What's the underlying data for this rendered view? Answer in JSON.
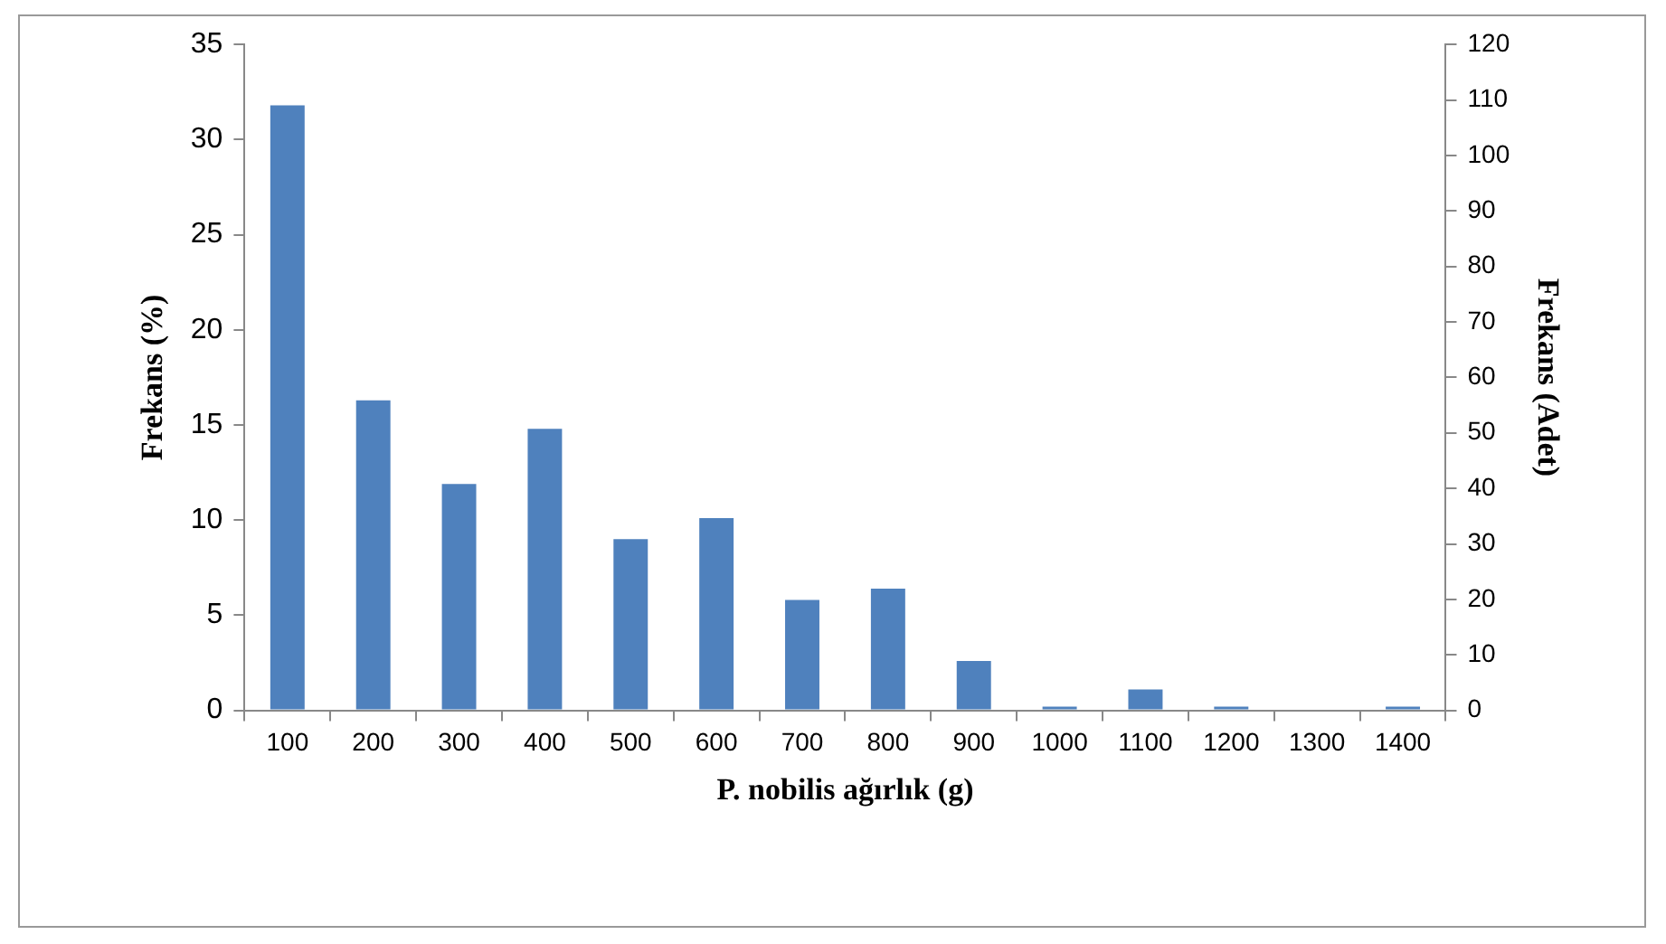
{
  "chart_data": {
    "type": "bar",
    "categories": [
      "100",
      "200",
      "300",
      "400",
      "500",
      "600",
      "700",
      "800",
      "900",
      "1000",
      "1100",
      "1200",
      "1300",
      "1400"
    ],
    "values": [
      31.8,
      16.3,
      11.9,
      14.8,
      9.0,
      10.1,
      5.8,
      6.4,
      2.6,
      0.2,
      1.1,
      0.2,
      0,
      0.2
    ],
    "color": "#4f81bd",
    "xlabel": "P. nobilis ağırlık (g)",
    "ylabel": "Frekans (%)",
    "y2label": "Frekans (Adet)",
    "ylim": [
      0,
      35
    ],
    "yticks": [
      0,
      5,
      10,
      15,
      20,
      25,
      30,
      35
    ],
    "y2lim": [
      0,
      120
    ],
    "y2ticks": [
      0,
      10,
      20,
      30,
      40,
      50,
      60,
      70,
      80,
      90,
      100,
      110,
      120
    ],
    "grid": false,
    "legend": false
  }
}
